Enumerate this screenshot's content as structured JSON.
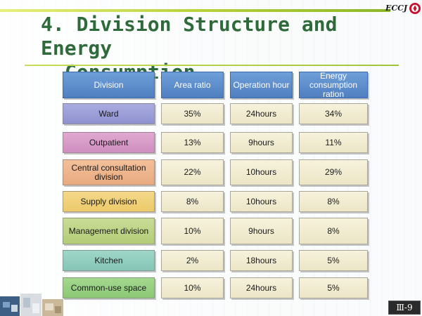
{
  "logo": {
    "text": "ECCJ"
  },
  "title": {
    "line1": "4. Division Structure and Energy",
    "line2": "Consumption"
  },
  "table": {
    "headers": [
      "Division",
      "Area ratio",
      "Operation hour",
      "Energy consumption ration"
    ],
    "rows": [
      {
        "division": "Ward",
        "area_ratio": "35%",
        "operation_hour": "24hours",
        "energy_ratio": "34%",
        "color": "#9a9cd8"
      },
      {
        "division": "Outpatient",
        "area_ratio": "13%",
        "operation_hour": "9hours",
        "energy_ratio": "11%",
        "color": "#d79cc8"
      },
      {
        "division": "Central consultation division",
        "area_ratio": "22%",
        "operation_hour": "10hours",
        "energy_ratio": "29%",
        "color": "#eeb58c"
      },
      {
        "division": "Supply division",
        "area_ratio": "8%",
        "operation_hour": "10hours",
        "energy_ratio": "8%",
        "color": "#f0d17a"
      },
      {
        "division": "Management division",
        "area_ratio": "10%",
        "operation_hour": "9hours",
        "energy_ratio": "8%",
        "color": "#bed487"
      },
      {
        "division": "Kitchen",
        "area_ratio": "2%",
        "operation_hour": "18hours",
        "energy_ratio": "5%",
        "color": "#93cebf"
      },
      {
        "division": "Common-use space",
        "area_ratio": "10%",
        "operation_hour": "24hours",
        "energy_ratio": "5%",
        "color": "#98d082"
      }
    ]
  },
  "page_number": "Ⅲ-9",
  "colors": {
    "title": "#2f6b3a",
    "header": "#5a8ac8",
    "value_cell": "#f1ecd1",
    "accent_bar": "#b9d23a"
  }
}
